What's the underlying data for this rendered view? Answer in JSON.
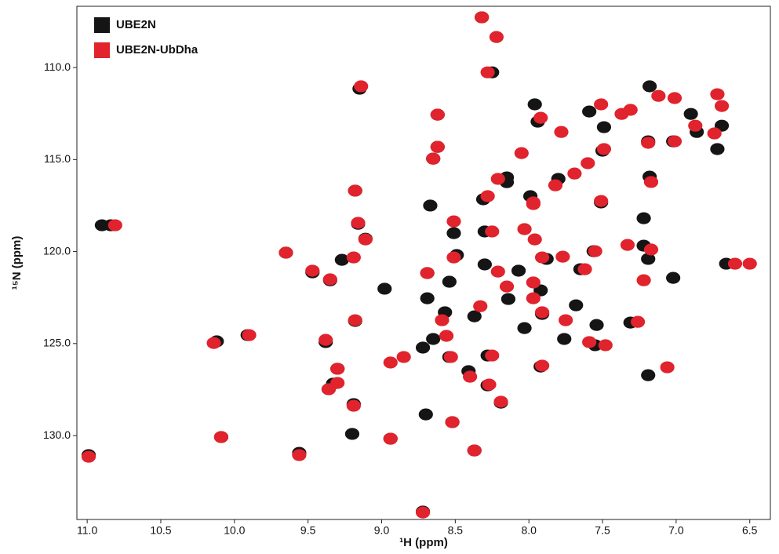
{
  "chart_data": {
    "type": "scatter",
    "x_label": "¹H (ppm)",
    "y_label": "¹⁵N (ppm)",
    "xlim": [
      11.07,
      6.36
    ],
    "ylim": [
      106.67,
      134.56
    ],
    "xticks": [
      {
        "value": 11,
        "label": "11.0"
      },
      10.5,
      {
        "value": 10,
        "label": "10.0"
      },
      9.5,
      {
        "value": 9,
        "label": "9.0"
      },
      8.5,
      {
        "value": 8,
        "label": "8.0"
      },
      7.5,
      {
        "value": 7,
        "label": "7.0"
      },
      6.5
    ],
    "yticks": [
      {
        "value": 110,
        "label": "110.0"
      },
      {
        "value": 115,
        "label": "115.0"
      },
      {
        "value": 120,
        "label": "120.0"
      },
      {
        "value": 125,
        "label": "125.0"
      },
      {
        "value": 130,
        "label": "130.0"
      }
    ],
    "legend": "upper left",
    "series": [
      {
        "name": "UBE2N",
        "color": "#151515",
        "x": [
          8.32,
          8.25,
          9.15,
          7.96,
          7.18,
          8.62,
          8.62,
          8.65,
          9.18,
          8.67,
          8.31,
          8.15,
          7.99,
          7.8,
          7.51,
          7.18,
          7.22,
          9.16,
          10.9,
          10.84,
          9.11,
          9.65,
          9.27,
          9.47,
          9.35,
          8.98,
          8.69,
          8.49,
          8.51,
          8.3,
          8.07,
          8.14,
          8.37,
          8.57,
          9.18,
          9.91,
          10.12,
          9.38,
          8.72,
          8.54,
          8.28,
          7.92,
          8.41,
          9.3,
          9.33,
          9.36,
          8.28,
          8.19,
          9.19,
          8.7,
          9.2,
          8.94,
          10.09,
          8.52,
          9.56,
          8.37,
          10.99,
          8.72,
          7.76,
          8.03,
          7.54,
          7.31,
          7.02,
          6.66,
          7.19,
          7.22,
          7.56,
          7.19,
          7.65,
          7.88,
          7.92,
          6.9,
          6.69,
          6.86,
          7.02,
          7.19,
          7.5,
          6.72,
          7.49,
          7.59,
          7.94,
          8.15,
          7.68,
          7.91,
          8.65,
          8.3,
          8.54,
          8.69,
          7.55
        ],
        "values": [
          107.27,
          110.26,
          111.15,
          112.0,
          111.02,
          112.56,
          114.31,
          114.95,
          116.69,
          117.5,
          117.16,
          115.97,
          116.99,
          116.05,
          117.33,
          115.93,
          118.19,
          118.49,
          118.57,
          118.57,
          119.3,
          120.06,
          120.45,
          121.13,
          121.56,
          122.02,
          121.17,
          120.19,
          119.0,
          118.91,
          121.04,
          122.58,
          123.52,
          123.3,
          123.77,
          124.54,
          124.88,
          124.92,
          125.22,
          125.73,
          125.65,
          126.25,
          126.5,
          126.37,
          127.18,
          127.48,
          127.27,
          128.21,
          128.29,
          128.85,
          129.91,
          130.17,
          130.08,
          129.27,
          130.94,
          130.81,
          131.06,
          134.13,
          124.75,
          124.16,
          123.99,
          123.86,
          121.43,
          120.66,
          126.72,
          119.68,
          119.98,
          120.4,
          120.96,
          120.4,
          122.11,
          112.52,
          113.16,
          113.5,
          114.01,
          114.01,
          114.52,
          114.43,
          113.24,
          112.39,
          112.94,
          116.23,
          122.92,
          123.39,
          124.75,
          120.7,
          121.64,
          122.54,
          125.09
        ]
      },
      {
        "name": "UBE2N-UbDha",
        "color": "#e0232c",
        "x": [
          8.32,
          8.22,
          8.28,
          9.14,
          8.62,
          8.62,
          8.65,
          9.18,
          8.28,
          8.21,
          7.97,
          7.82,
          7.51,
          7.17,
          9.16,
          10.81,
          9.11,
          9.65,
          9.19,
          9.47,
          9.35,
          8.69,
          8.51,
          8.51,
          8.25,
          8.03,
          8.21,
          8.15,
          7.97,
          8.33,
          8.59,
          9.18,
          9.9,
          10.14,
          9.38,
          8.56,
          8.53,
          8.25,
          7.91,
          8.4,
          8.85,
          8.94,
          9.3,
          9.3,
          9.36,
          8.27,
          8.19,
          9.19,
          8.52,
          8.94,
          10.09,
          9.56,
          8.37,
          10.99,
          8.72,
          7.59,
          7.48,
          7.75,
          7.91,
          7.26,
          7.06,
          6.5,
          6.6,
          7.22,
          7.33,
          7.17,
          7.55,
          7.77,
          7.62,
          7.91,
          7.97,
          7.96,
          7.97,
          7.78,
          7.92,
          7.51,
          7.37,
          7.12,
          7.01,
          6.87,
          6.74,
          6.72,
          6.69,
          7.01,
          7.19,
          7.49,
          7.31,
          7.6,
          7.69,
          8.05
        ],
        "values": [
          107.27,
          108.34,
          110.26,
          111.02,
          112.56,
          114.31,
          114.95,
          116.69,
          116.99,
          116.05,
          117.42,
          116.4,
          117.25,
          116.22,
          118.44,
          118.57,
          119.34,
          120.06,
          120.32,
          121.04,
          121.51,
          121.17,
          120.32,
          118.36,
          118.91,
          118.78,
          121.09,
          121.9,
          122.54,
          122.97,
          123.73,
          123.73,
          124.54,
          124.97,
          124.8,
          124.58,
          125.73,
          125.65,
          126.2,
          126.8,
          125.73,
          126.03,
          126.37,
          127.14,
          127.48,
          127.23,
          128.16,
          128.38,
          129.27,
          130.17,
          130.08,
          131.06,
          130.81,
          131.15,
          134.18,
          124.92,
          125.09,
          123.73,
          123.3,
          123.82,
          126.29,
          120.66,
          120.66,
          121.56,
          119.64,
          119.89,
          119.98,
          120.28,
          120.96,
          120.32,
          121.68,
          119.34,
          117.33,
          113.5,
          112.73,
          112.0,
          112.52,
          111.54,
          111.66,
          113.16,
          113.58,
          111.45,
          112.09,
          114.01,
          114.09,
          114.43,
          112.3,
          115.2,
          115.76,
          114.65
        ]
      }
    ]
  }
}
